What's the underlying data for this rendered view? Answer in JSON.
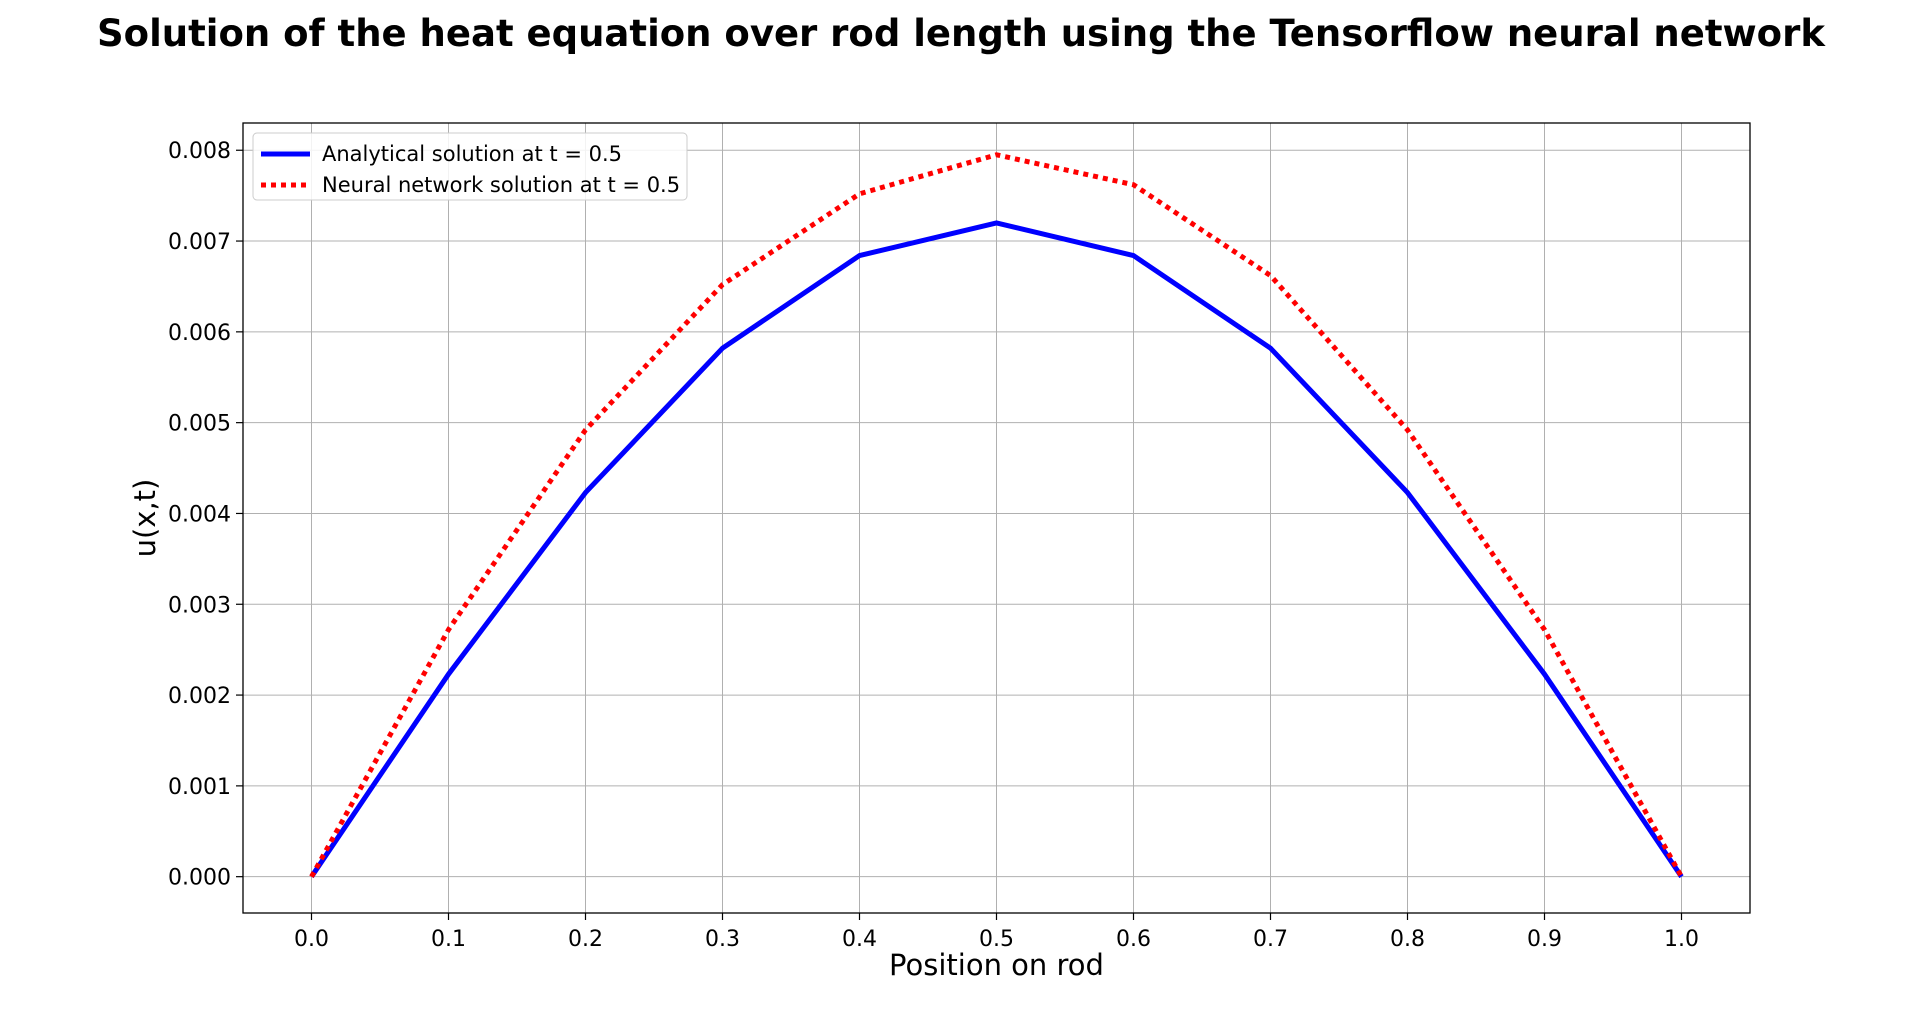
{
  "chart_data": {
    "type": "line",
    "title": "Solution of the heat equation over rod length using the Tensorflow neural network",
    "xlabel": "Position on rod",
    "ylabel": "u(x,t)",
    "xlim": [
      -0.05,
      1.05
    ],
    "ylim": [
      -0.0004,
      0.0083
    ],
    "xticks": [
      0.0,
      0.1,
      0.2,
      0.3,
      0.4,
      0.5,
      0.6,
      0.7,
      0.8,
      0.9,
      1.0
    ],
    "xtick_labels": [
      "0.0",
      "0.1",
      "0.2",
      "0.3",
      "0.4",
      "0.5",
      "0.6",
      "0.7",
      "0.8",
      "0.9",
      "1.0"
    ],
    "yticks": [
      0.0,
      0.001,
      0.002,
      0.003,
      0.004,
      0.005,
      0.006,
      0.007,
      0.008
    ],
    "ytick_labels": [
      "0.000",
      "0.001",
      "0.002",
      "0.003",
      "0.004",
      "0.005",
      "0.006",
      "0.007",
      "0.008"
    ],
    "grid": true,
    "legend_position": "top-left",
    "x": [
      0.0,
      0.1,
      0.2,
      0.3,
      0.4,
      0.5,
      0.6,
      0.7,
      0.8,
      0.9,
      1.0
    ],
    "series": [
      {
        "name": "Analytical solution at t = 0.5",
        "color": "#0000ff",
        "style": "solid",
        "values": [
          0.0,
          0.00223,
          0.00423,
          0.00582,
          0.00684,
          0.0072,
          0.00684,
          0.00582,
          0.00423,
          0.00223,
          0.0
        ]
      },
      {
        "name": "Neural network solution at t = 0.5",
        "color": "#ff0000",
        "style": "dotted",
        "values": [
          0.0,
          0.00272,
          0.00492,
          0.00652,
          0.00752,
          0.00795,
          0.00762,
          0.00662,
          0.00492,
          0.00272,
          0.0
        ]
      }
    ]
  }
}
